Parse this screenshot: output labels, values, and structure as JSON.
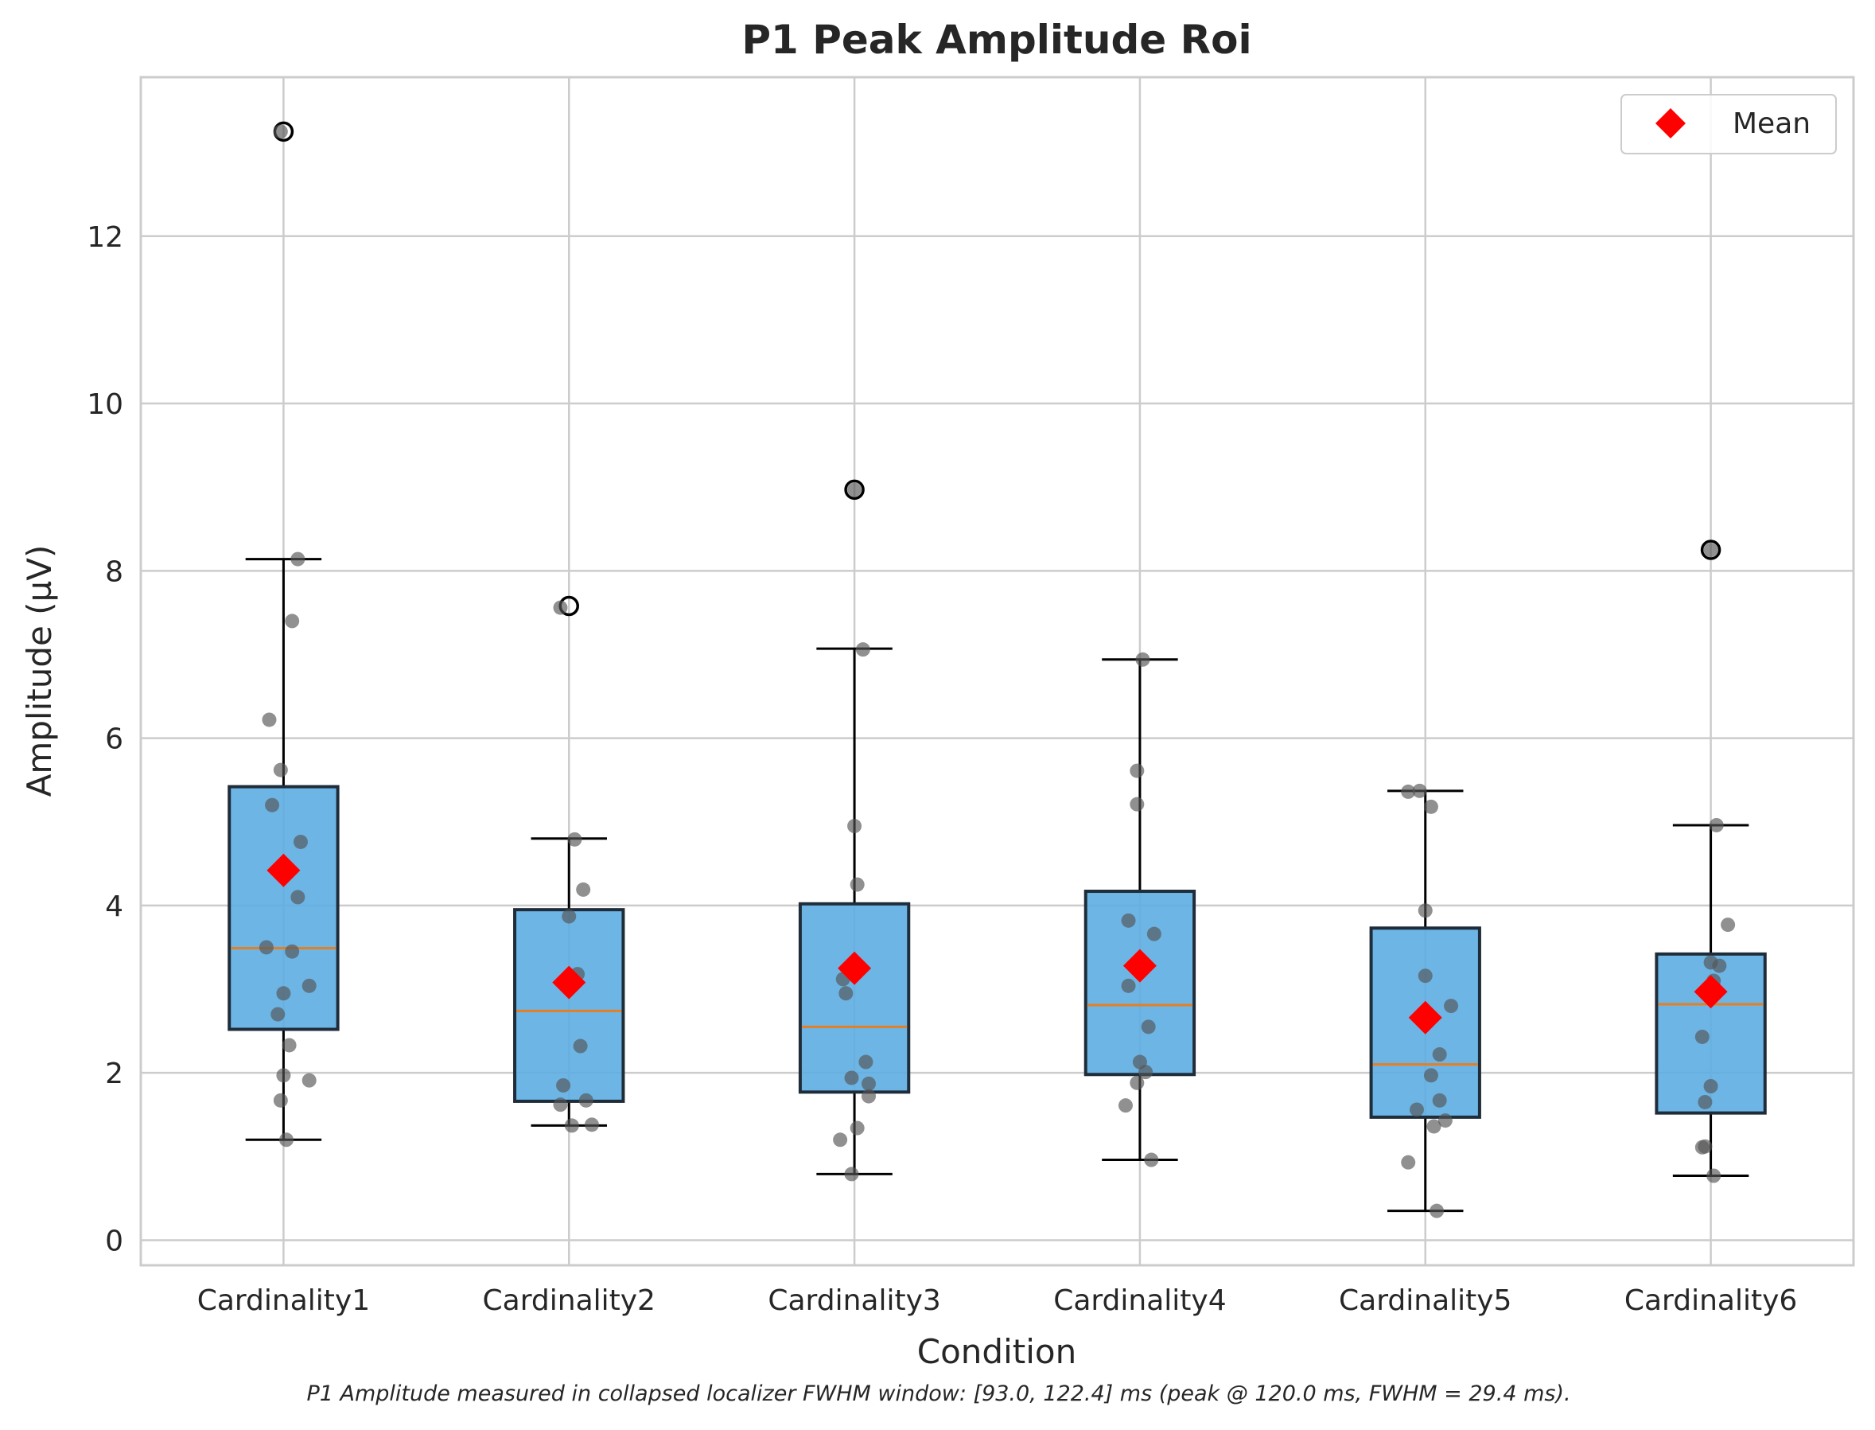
{
  "chart_data": {
    "type": "box",
    "title": "P1 Peak Amplitude Roi",
    "xlabel": "Condition",
    "ylabel": "Amplitude (µV)",
    "caption": "P1 Amplitude measured in collapsed localizer FWHM window: [93.0, 122.4] ms (peak @ 120.0 ms, FWHM = 29.4 ms).",
    "ylim": [
      -0.3,
      13.9
    ],
    "yticks": [
      0,
      2,
      4,
      6,
      8,
      10,
      12
    ],
    "grid": true,
    "legend": {
      "position": "top-right",
      "entries": [
        {
          "label": "Mean",
          "marker": "red-diamond"
        }
      ]
    },
    "colors": {
      "box_fill": "#5dade2",
      "box_edge": "#1f2d3a",
      "median": "#e67e22",
      "mean": "#ff0000",
      "points": "#555555",
      "grid": "#cccccc"
    },
    "categories": [
      "Cardinality1",
      "Cardinality2",
      "Cardinality3",
      "Cardinality4",
      "Cardinality5",
      "Cardinality6"
    ],
    "boxes": [
      {
        "name": "Cardinality1",
        "whisker_low": 1.2,
        "q1": 2.52,
        "median": 3.49,
        "q3": 5.42,
        "whisker_high": 8.14,
        "mean": 4.42,
        "outliers": [
          13.25
        ],
        "points": [
          [
            -0.01,
            13.25
          ],
          [
            0.05,
            8.14
          ],
          [
            0.03,
            7.4
          ],
          [
            -0.05,
            6.22
          ],
          [
            -0.01,
            5.62
          ],
          [
            -0.04,
            5.2
          ],
          [
            0.06,
            4.76
          ],
          [
            0.05,
            4.1
          ],
          [
            -0.06,
            3.5
          ],
          [
            0.03,
            3.45
          ],
          [
            0.09,
            3.04
          ],
          [
            0.0,
            2.95
          ],
          [
            -0.02,
            2.7
          ],
          [
            0.02,
            2.33
          ],
          [
            0.0,
            1.97
          ],
          [
            0.09,
            1.91
          ],
          [
            -0.01,
            1.67
          ],
          [
            0.01,
            1.2
          ]
        ]
      },
      {
        "name": "Cardinality2",
        "whisker_low": 1.37,
        "q1": 1.66,
        "median": 2.74,
        "q3": 3.95,
        "whisker_high": 4.8,
        "mean": 3.08,
        "outliers": [
          7.58
        ],
        "points": [
          [
            -0.03,
            7.56
          ],
          [
            0.02,
            4.79
          ],
          [
            0.05,
            4.19
          ],
          [
            0.0,
            3.87
          ],
          [
            0.03,
            3.18
          ],
          [
            0.04,
            2.32
          ],
          [
            -0.02,
            1.85
          ],
          [
            0.06,
            1.67
          ],
          [
            -0.03,
            1.62
          ],
          [
            0.01,
            1.37
          ],
          [
            0.08,
            1.38
          ]
        ]
      },
      {
        "name": "Cardinality3",
        "whisker_low": 0.79,
        "q1": 1.77,
        "median": 2.55,
        "q3": 4.02,
        "whisker_high": 7.07,
        "mean": 3.25,
        "outliers": [
          8.97
        ],
        "points": [
          [
            0.0,
            8.97
          ],
          [
            0.03,
            7.06
          ],
          [
            0.0,
            4.95
          ],
          [
            0.01,
            4.25
          ],
          [
            -0.04,
            3.12
          ],
          [
            -0.03,
            2.95
          ],
          [
            0.04,
            2.13
          ],
          [
            -0.01,
            1.94
          ],
          [
            0.05,
            1.87
          ],
          [
            0.05,
            1.72
          ],
          [
            0.01,
            1.34
          ],
          [
            -0.05,
            1.2
          ],
          [
            -0.01,
            0.79
          ]
        ]
      },
      {
        "name": "Cardinality4",
        "whisker_low": 0.96,
        "q1": 1.98,
        "median": 2.81,
        "q3": 4.17,
        "whisker_high": 6.94,
        "mean": 3.28,
        "outliers": [],
        "points": [
          [
            0.01,
            6.94
          ],
          [
            -0.01,
            5.61
          ],
          [
            -0.01,
            5.21
          ],
          [
            -0.04,
            3.82
          ],
          [
            0.05,
            3.66
          ],
          [
            -0.04,
            3.04
          ],
          [
            0.03,
            2.55
          ],
          [
            0.0,
            2.13
          ],
          [
            0.02,
            2.01
          ],
          [
            -0.01,
            1.88
          ],
          [
            -0.05,
            1.61
          ],
          [
            0.04,
            0.96
          ]
        ]
      },
      {
        "name": "Cardinality5",
        "whisker_low": 0.35,
        "q1": 1.47,
        "median": 2.1,
        "q3": 3.73,
        "whisker_high": 5.37,
        "mean": 2.66,
        "outliers": [],
        "points": [
          [
            -0.02,
            5.37
          ],
          [
            -0.06,
            5.36
          ],
          [
            0.02,
            5.18
          ],
          [
            0.0,
            3.94
          ],
          [
            0.0,
            3.16
          ],
          [
            0.09,
            2.8
          ],
          [
            0.05,
            2.22
          ],
          [
            0.02,
            1.97
          ],
          [
            0.05,
            1.67
          ],
          [
            -0.03,
            1.56
          ],
          [
            0.07,
            1.43
          ],
          [
            0.03,
            1.36
          ],
          [
            -0.06,
            0.93
          ],
          [
            0.04,
            0.35
          ]
        ]
      },
      {
        "name": "Cardinality6",
        "whisker_low": 0.77,
        "q1": 1.52,
        "median": 2.82,
        "q3": 3.42,
        "whisker_high": 4.96,
        "mean": 2.97,
        "outliers": [
          8.25
        ],
        "points": [
          [
            0.0,
            8.25
          ],
          [
            0.02,
            4.96
          ],
          [
            0.06,
            3.77
          ],
          [
            0.0,
            3.32
          ],
          [
            0.03,
            3.28
          ],
          [
            0.01,
            3.1
          ],
          [
            -0.03,
            2.43
          ],
          [
            0.0,
            1.84
          ],
          [
            -0.02,
            1.65
          ],
          [
            -0.02,
            1.12
          ],
          [
            -0.03,
            1.11
          ],
          [
            0.01,
            0.77
          ]
        ]
      }
    ]
  }
}
